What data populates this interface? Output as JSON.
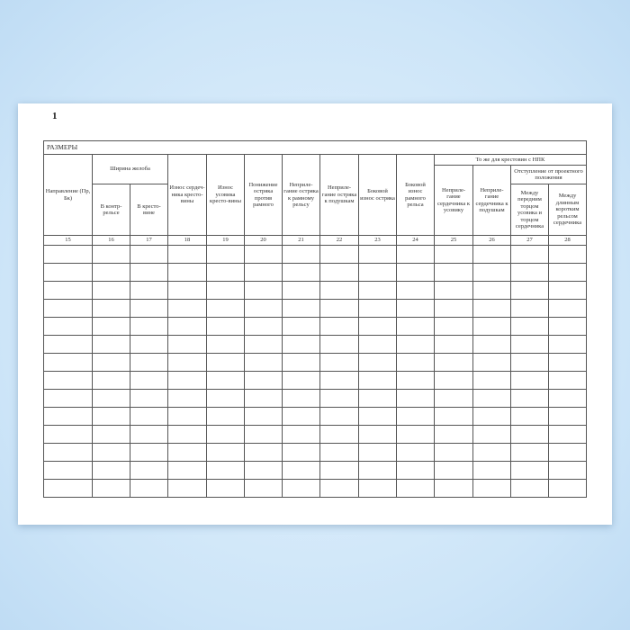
{
  "page_number": "1",
  "table": {
    "title": "РАЗМЕРЫ",
    "headers": {
      "c15": "Направление (Пр, Бк)",
      "groove_width": "Ширина желоба",
      "c16": "В контр-рельсе",
      "c17": "В кресто-вине",
      "c18": "Износ сердеч-ника кресто-вины",
      "c19": "Износ усовика кресто-вины",
      "c20": "Понижение остряка против рамного",
      "c21": "Неприле-гание остряка к рамному рельсу",
      "c22": "Неприле-гание остряка к подушкам",
      "c23": "Боковой износ остряка",
      "c24": "Боковой износ рамного рельса",
      "npk_group": "То же для крестовин с НПК",
      "c25": "Неприле-гание сердечника к усовику",
      "c26": "Неприле-гание сердечника к подушкам",
      "deviation_group": "Отступление от проектного положения",
      "c27": "Между передним торцом усовика и торцом сердечника",
      "c28": "Между длинным коротким рельсом сердечника"
    },
    "column_numbers": [
      "15",
      "16",
      "17",
      "18",
      "19",
      "20",
      "21",
      "22",
      "23",
      "24",
      "25",
      "26",
      "27",
      "28"
    ],
    "empty_rows": 14
  }
}
